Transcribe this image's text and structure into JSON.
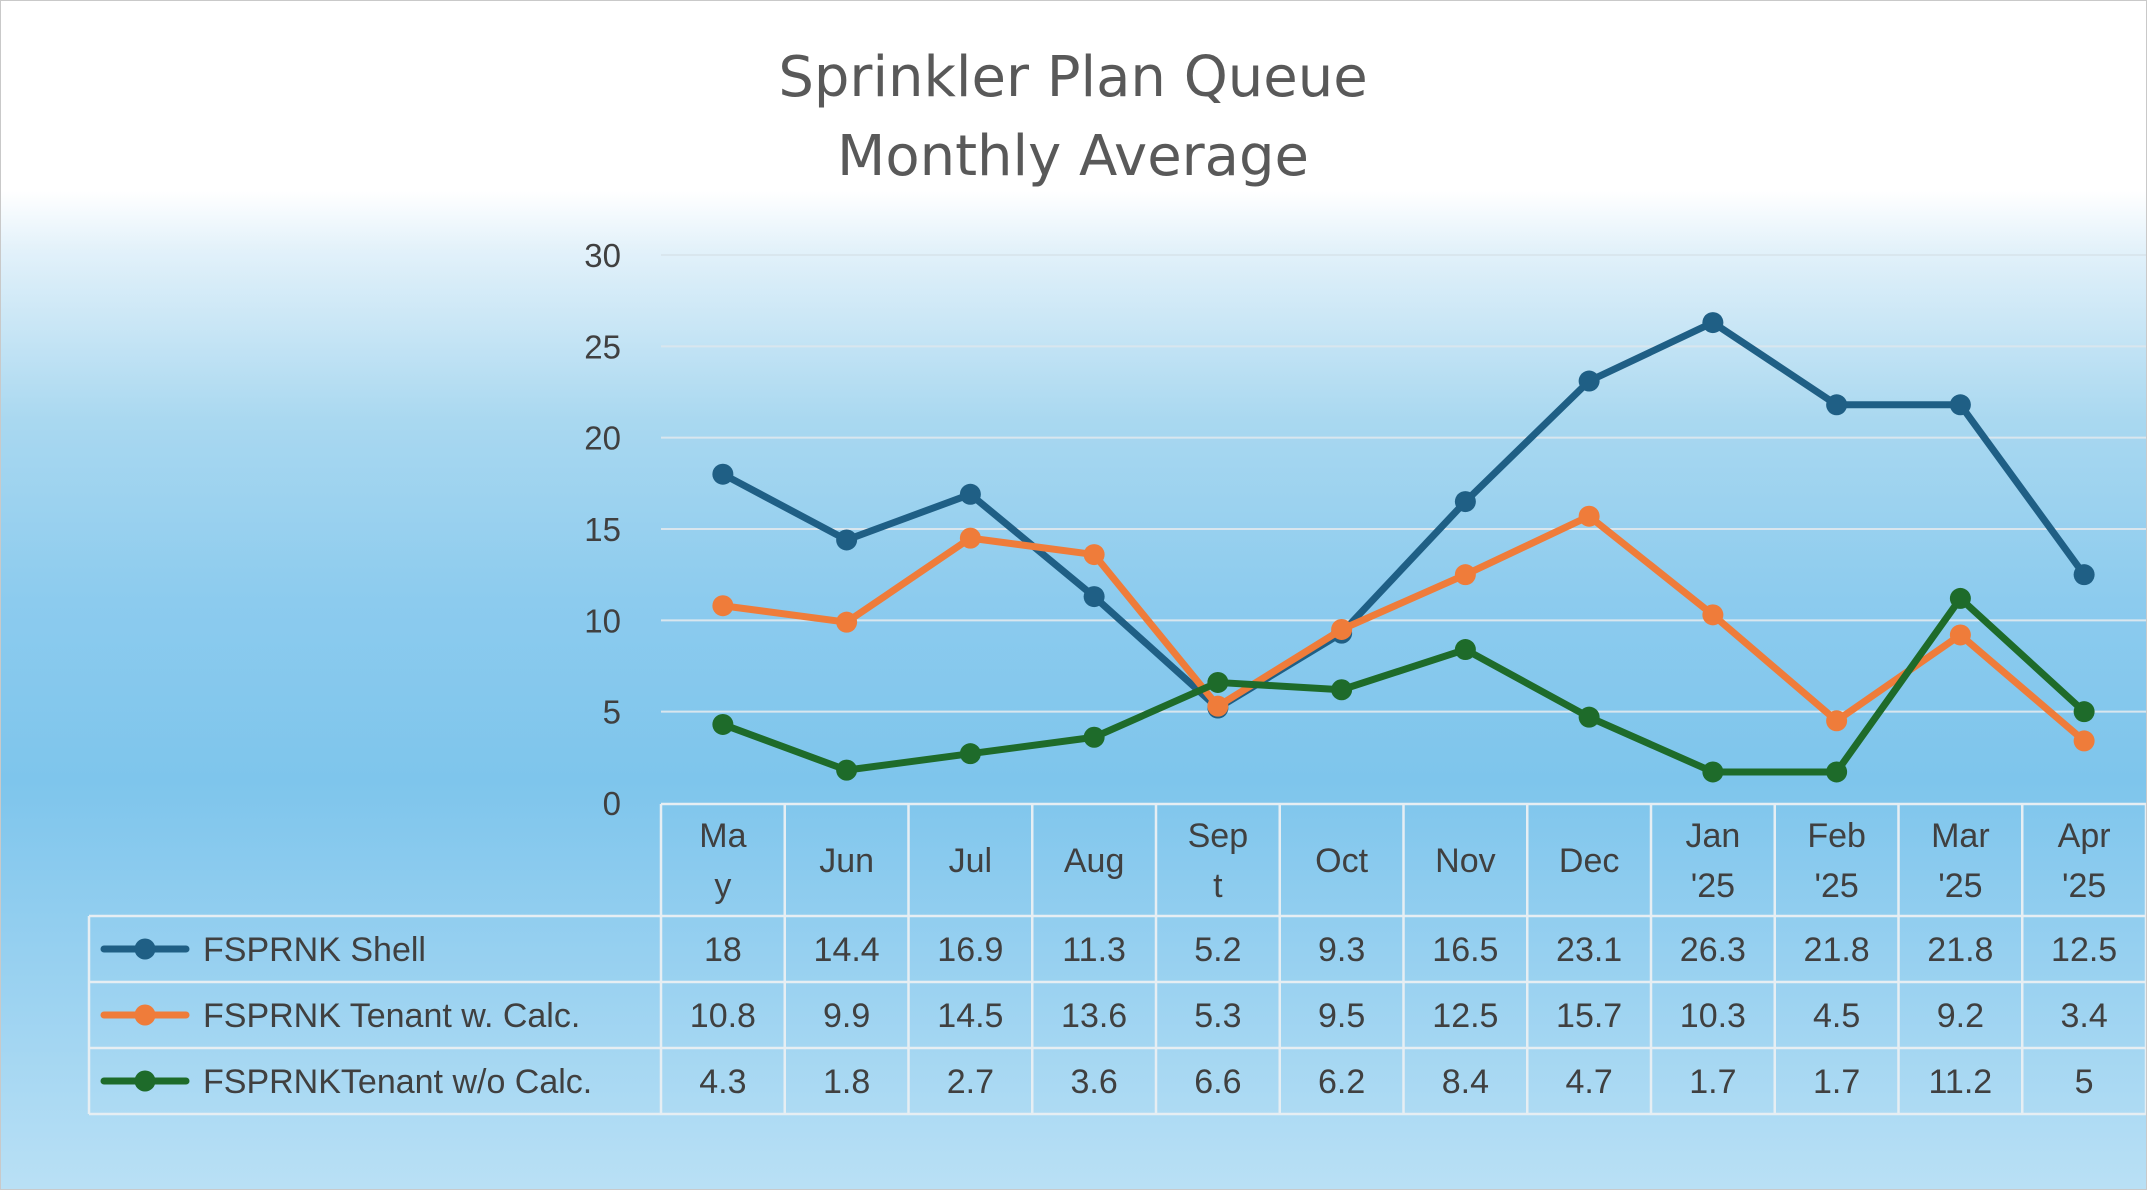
{
  "chart_data": {
    "type": "line",
    "title": [
      "Sprinkler Plan Queue",
      "Monthly Average"
    ],
    "categories": [
      [
        "Ma",
        "y"
      ],
      [
        "Jun"
      ],
      [
        "Jul"
      ],
      [
        "Aug"
      ],
      [
        "Sep",
        "t"
      ],
      [
        "Oct"
      ],
      [
        "Nov"
      ],
      [
        "Dec"
      ],
      [
        "Jan",
        "'25"
      ],
      [
        "Feb",
        "'25"
      ],
      [
        "Mar",
        "'25"
      ],
      [
        "Apr",
        "'25"
      ]
    ],
    "ylim": [
      0,
      30
    ],
    "yticks": [
      0,
      5,
      10,
      15,
      20,
      25,
      30
    ],
    "grid": true,
    "legend": "data-table",
    "series": [
      {
        "name": "FSPRNK Shell",
        "color": "#1f5f85",
        "values": [
          18,
          14.4,
          16.9,
          11.3,
          5.2,
          9.3,
          16.5,
          23.1,
          26.3,
          21.8,
          21.8,
          12.5
        ],
        "labels": [
          "18",
          "14.4",
          "16.9",
          "11.3",
          "5.2",
          "9.3",
          "16.5",
          "23.1",
          "26.3",
          "21.8",
          "21.8",
          "12.5"
        ]
      },
      {
        "name": "FSPRNK Tenant w. Calc.",
        "color": "#ef7c3a",
        "values": [
          10.8,
          9.9,
          14.5,
          13.6,
          5.3,
          9.5,
          12.5,
          15.7,
          10.3,
          4.5,
          9.2,
          3.4
        ],
        "labels": [
          "10.8",
          "9.9",
          "14.5",
          "13.6",
          "5.3",
          "9.5",
          "12.5",
          "15.7",
          "10.3",
          "4.5",
          "9.2",
          "3.4"
        ]
      },
      {
        "name": "FSPRNKTenant w/o Calc.",
        "color": "#1e6b2a",
        "values": [
          4.3,
          1.8,
          2.7,
          3.6,
          6.6,
          6.2,
          8.4,
          4.7,
          1.7,
          1.7,
          11.2,
          5
        ],
        "labels": [
          "4.3",
          "1.8",
          "2.7",
          "3.6",
          "6.6",
          "6.2",
          "8.4",
          "4.7",
          "1.7",
          "1.7",
          "11.2",
          "5"
        ]
      }
    ]
  }
}
